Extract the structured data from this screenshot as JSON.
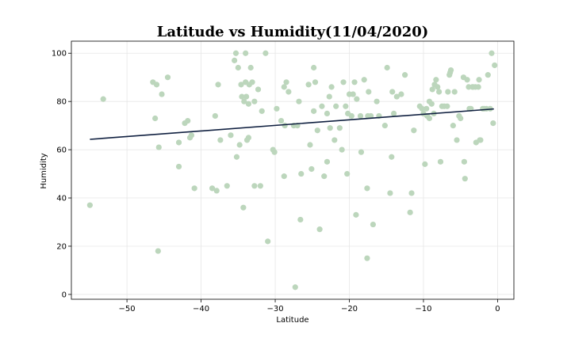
{
  "chart_data": {
    "type": "scatter",
    "title": "Latitude vs Humidity(11/04/2020)",
    "xlabel": "Latitude",
    "ylabel": "Humidity",
    "xlim": [
      -57.5,
      2.2
    ],
    "ylim": [
      -2,
      105
    ],
    "xticks": [
      -50,
      -40,
      -30,
      -20,
      -10,
      0
    ],
    "yticks": [
      0,
      20,
      40,
      60,
      80,
      100
    ],
    "grid": true,
    "point_color": "#bcd6bc",
    "line_color": "#102040",
    "regression": {
      "x": [
        -55,
        -0.5
      ],
      "y": [
        64.3,
        76.9
      ]
    },
    "points": [
      [
        -55,
        37
      ],
      [
        -53.2,
        81
      ],
      [
        -46.5,
        88
      ],
      [
        -46.2,
        73
      ],
      [
        -46,
        87
      ],
      [
        -45.8,
        18
      ],
      [
        -45.7,
        61
      ],
      [
        -45.3,
        83
      ],
      [
        -44.5,
        90
      ],
      [
        -43,
        63
      ],
      [
        -43,
        53
      ],
      [
        -42.2,
        71
      ],
      [
        -41.8,
        72
      ],
      [
        -41.5,
        65
      ],
      [
        -41.3,
        66
      ],
      [
        -40.9,
        44
      ],
      [
        -38.5,
        44
      ],
      [
        -38.1,
        74
      ],
      [
        -37.9,
        43
      ],
      [
        -37.7,
        87
      ],
      [
        -37.4,
        64
      ],
      [
        -36.5,
        45
      ],
      [
        -36,
        66
      ],
      [
        -35.5,
        97
      ],
      [
        -35.3,
        100
      ],
      [
        -35.2,
        57
      ],
      [
        -35,
        94
      ],
      [
        -34.8,
        62
      ],
      [
        -34.6,
        87
      ],
      [
        -34.5,
        82
      ],
      [
        -34.3,
        36
      ],
      [
        -34.2,
        80
      ],
      [
        -34,
        100
      ],
      [
        -34,
        88
      ],
      [
        -33.9,
        82
      ],
      [
        -33.8,
        64
      ],
      [
        -33.6,
        65
      ],
      [
        -33.6,
        79
      ],
      [
        -33.5,
        87
      ],
      [
        -33.3,
        94
      ],
      [
        -33.1,
        88
      ],
      [
        -32.8,
        80
      ],
      [
        -32.8,
        45
      ],
      [
        -32.3,
        85
      ],
      [
        -32,
        45
      ],
      [
        -31.8,
        76
      ],
      [
        -31.3,
        100
      ],
      [
        -31,
        22
      ],
      [
        -30.3,
        60
      ],
      [
        -30.1,
        59
      ],
      [
        -29.8,
        77
      ],
      [
        -29.2,
        72
      ],
      [
        -28.8,
        86
      ],
      [
        -28.8,
        49
      ],
      [
        -28.7,
        70
      ],
      [
        -28.5,
        88
      ],
      [
        -28.2,
        84
      ],
      [
        -27.5,
        70
      ],
      [
        -27.3,
        3
      ],
      [
        -27,
        70
      ],
      [
        -26.8,
        80
      ],
      [
        -26.6,
        31
      ],
      [
        -26.5,
        50
      ],
      [
        -25.5,
        87
      ],
      [
        -25.3,
        62
      ],
      [
        -25.1,
        52
      ],
      [
        -24.8,
        94
      ],
      [
        -24.8,
        76
      ],
      [
        -24.6,
        88
      ],
      [
        -24.3,
        68
      ],
      [
        -24,
        27
      ],
      [
        -23.7,
        78
      ],
      [
        -23.4,
        49
      ],
      [
        -23,
        75
      ],
      [
        -23,
        55
      ],
      [
        -22.7,
        82
      ],
      [
        -22.6,
        69
      ],
      [
        -22.4,
        86
      ],
      [
        -22,
        64
      ],
      [
        -21.8,
        78
      ],
      [
        -21.3,
        69
      ],
      [
        -21,
        60
      ],
      [
        -20.8,
        88
      ],
      [
        -20.5,
        78
      ],
      [
        -20.3,
        50
      ],
      [
        -20.2,
        75
      ],
      [
        -20,
        83
      ],
      [
        -19.7,
        74
      ],
      [
        -19.5,
        83
      ],
      [
        -19.3,
        88
      ],
      [
        -19.1,
        33
      ],
      [
        -19,
        81
      ],
      [
        -18.5,
        74
      ],
      [
        -18.4,
        59
      ],
      [
        -18,
        89
      ],
      [
        -17.6,
        15
      ],
      [
        -17.6,
        44
      ],
      [
        -17.5,
        74
      ],
      [
        -17.4,
        84
      ],
      [
        -17.1,
        74
      ],
      [
        -16.8,
        29
      ],
      [
        -16.3,
        80
      ],
      [
        -16,
        74
      ],
      [
        -15.2,
        70
      ],
      [
        -14.9,
        94
      ],
      [
        -14.5,
        42
      ],
      [
        -14.3,
        57
      ],
      [
        -14.2,
        84
      ],
      [
        -14,
        75
      ],
      [
        -13.6,
        82
      ],
      [
        -13,
        83
      ],
      [
        -12.5,
        91
      ],
      [
        -11.8,
        34
      ],
      [
        -11.6,
        42
      ],
      [
        -11.3,
        68
      ],
      [
        -10.5,
        78
      ],
      [
        -10.2,
        77
      ],
      [
        -10,
        75
      ],
      [
        -9.8,
        54
      ],
      [
        -9.6,
        77
      ],
      [
        -9.5,
        74
      ],
      [
        -9.2,
        73
      ],
      [
        -9.2,
        80
      ],
      [
        -8.9,
        79
      ],
      [
        -8.8,
        85
      ],
      [
        -8.6,
        75
      ],
      [
        -8.5,
        87
      ],
      [
        -8.3,
        89
      ],
      [
        -8.1,
        86
      ],
      [
        -7.9,
        84
      ],
      [
        -7.7,
        55
      ],
      [
        -7.5,
        78
      ],
      [
        -7.2,
        78
      ],
      [
        -6.8,
        78
      ],
      [
        -6.7,
        84
      ],
      [
        -6.5,
        91
      ],
      [
        -6.4,
        92
      ],
      [
        -6.3,
        93
      ],
      [
        -6,
        70
      ],
      [
        -5.8,
        84
      ],
      [
        -5.5,
        64
      ],
      [
        -5.2,
        74
      ],
      [
        -5,
        73
      ],
      [
        -4.6,
        90
      ],
      [
        -4.5,
        55
      ],
      [
        -4.4,
        48
      ],
      [
        -4.1,
        89
      ],
      [
        -3.9,
        86
      ],
      [
        -3.8,
        77
      ],
      [
        -3.6,
        77
      ],
      [
        -3.4,
        86
      ],
      [
        -3.3,
        86
      ],
      [
        -3,
        86
      ],
      [
        -2.9,
        63
      ],
      [
        -2.6,
        86
      ],
      [
        -2.5,
        89
      ],
      [
        -2.4,
        64
      ],
      [
        -2.3,
        64
      ],
      [
        -2,
        77
      ],
      [
        -1.8,
        77
      ],
      [
        -1.5,
        77
      ],
      [
        -1.3,
        91
      ],
      [
        -1,
        77
      ],
      [
        -0.8,
        100
      ],
      [
        -0.6,
        71
      ],
      [
        -0.4,
        95
      ]
    ]
  }
}
